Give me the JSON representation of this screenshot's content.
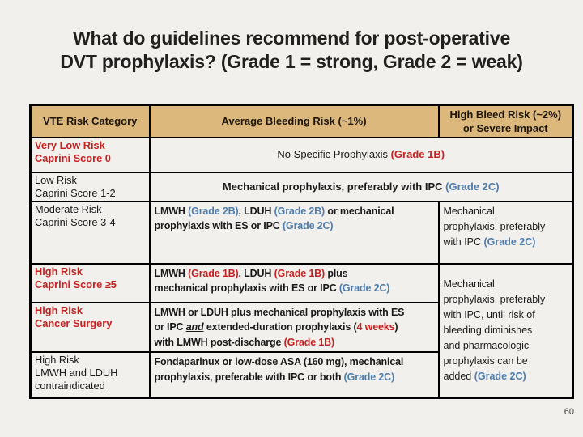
{
  "slide": {
    "title": "What do guidelines recommend for post-operative\nDVT prophylaxis? (Grade 1 = strong, Grade 2 = weak)",
    "page_number": "60"
  },
  "colors": {
    "background": "#f1f0ed",
    "header_bg": "#ddb87c",
    "emphasis_red": "#c32222",
    "emphasis_blue": "#4f7dac",
    "border": "#000000"
  },
  "table": {
    "header": {
      "col1": "VTE Risk Category",
      "col2": "Average Bleeding Risk (~1%)",
      "col3": "High Bleed Risk (~2%)\nor Severe Impact"
    },
    "rows": {
      "very_low": {
        "category": "Very Low Risk\nCaprini Score 0",
        "recommendation": [
          {
            "t": "No Specific Prophylaxis "
          },
          {
            "t": "(Grade 1B)",
            "s": "red"
          }
        ]
      },
      "low": {
        "category": "Low Risk\nCaprini Score 1-2",
        "recommendation": [
          {
            "t": "Mechanical prophylaxis, preferably with IPC "
          },
          {
            "t": "(Grade 2C)",
            "s": "blue"
          }
        ]
      },
      "moderate": {
        "category": "Moderate Risk\nCaprini Score 3-4",
        "avg_bleed": [
          {
            "t": "LMWH "
          },
          {
            "t": "(Grade 2B)",
            "s": "blue"
          },
          {
            "t": ", LDUH "
          },
          {
            "t": "(Grade 2B)",
            "s": "blue"
          },
          {
            "t": " or mechanical\nprophylaxis with ES or IPC "
          },
          {
            "t": "(Grade 2C)",
            "s": "blue"
          }
        ],
        "high_bleed": [
          {
            "t": "Mechanical\nprophylaxis, preferably\nwith IPC "
          },
          {
            "t": "(Grade 2C)",
            "s": "blue"
          }
        ]
      },
      "high_caprini": {
        "category": "High Risk\nCaprini Score ≥5",
        "avg_bleed": [
          {
            "t": "LMWH "
          },
          {
            "t": "(Grade 1B)",
            "s": "red"
          },
          {
            "t": ", LDUH "
          },
          {
            "t": "(Grade 1B)",
            "s": "red"
          },
          {
            "t": " plus\nmechanical prophylaxis with ES or IPC "
          },
          {
            "t": "(Grade 2C)",
            "s": "blue"
          }
        ]
      },
      "high_cancer": {
        "category": "High Risk\nCancer Surgery",
        "avg_bleed": [
          {
            "t": "LMWH or LDUH plus mechanical prophylaxis with ES\nor IPC "
          },
          {
            "t": "and",
            "s": "and"
          },
          {
            "t": " extended-duration prophylaxis ("
          },
          {
            "t": "4 weeks",
            "s": "red"
          },
          {
            "t": ")\nwith LMWH post-discharge "
          },
          {
            "t": "(Grade 1B)",
            "s": "red"
          }
        ]
      },
      "high_contraindicated": {
        "category": "High Risk\nLMWH and LDUH\ncontraindicated",
        "avg_bleed": [
          {
            "t": "Fondaparinux or low-dose ASA (160 mg), mechanical\nprophylaxis, preferable with IPC or both "
          },
          {
            "t": "(Grade 2C)",
            "s": "blue"
          }
        ]
      },
      "high_bleed_merged": [
        {
          "t": "Mechanical\nprophylaxis, preferably\nwith IPC, until risk of\nbleeding diminishes\nand pharmacologic\nprophylaxis can be\nadded "
        },
        {
          "t": "(Grade 2C)",
          "s": "blue"
        }
      ]
    }
  }
}
